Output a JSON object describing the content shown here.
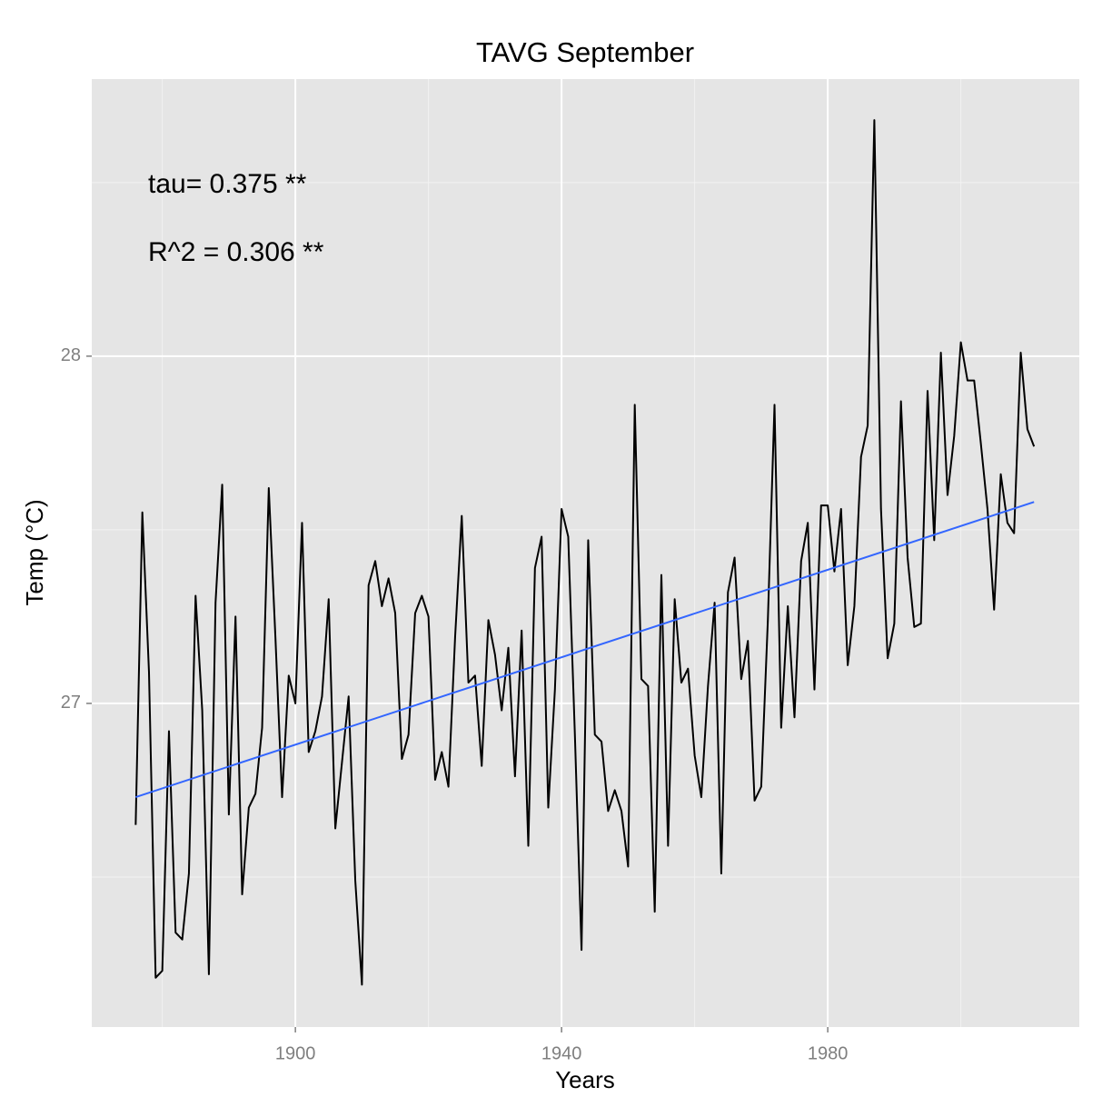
{
  "chart_data": {
    "type": "line",
    "title": "TAVG September",
    "x_label": "Years",
    "y_label": "Temp (°C)",
    "annotations": [
      "tau= 0.375 **",
      "R^2 =  0.306 **"
    ],
    "x": [
      1876,
      1877,
      1878,
      1879,
      1880,
      1881,
      1882,
      1883,
      1884,
      1885,
      1886,
      1887,
      1888,
      1889,
      1890,
      1891,
      1892,
      1893,
      1894,
      1895,
      1896,
      1897,
      1898,
      1899,
      1900,
      1901,
      1902,
      1903,
      1904,
      1905,
      1906,
      1907,
      1908,
      1909,
      1910,
      1911,
      1912,
      1913,
      1914,
      1915,
      1916,
      1917,
      1918,
      1919,
      1920,
      1921,
      1922,
      1923,
      1924,
      1925,
      1926,
      1927,
      1928,
      1929,
      1930,
      1931,
      1932,
      1933,
      1934,
      1935,
      1936,
      1937,
      1938,
      1939,
      1940,
      1941,
      1942,
      1943,
      1944,
      1945,
      1946,
      1947,
      1948,
      1949,
      1950,
      1951,
      1952,
      1953,
      1954,
      1955,
      1956,
      1957,
      1958,
      1959,
      1960,
      1961,
      1962,
      1963,
      1964,
      1965,
      1966,
      1967,
      1968,
      1969,
      1970,
      1971,
      1972,
      1973,
      1974,
      1975,
      1976,
      1977,
      1978,
      1979,
      1980,
      1981,
      1982,
      1983,
      1984,
      1985,
      1986,
      1987,
      1988,
      1989,
      1990,
      1991,
      1992,
      1993,
      1994,
      1995,
      1996,
      1997,
      1998,
      1999,
      2000,
      2001,
      2002,
      2003,
      2004,
      2005,
      2006,
      2007,
      2008,
      2009,
      2010,
      2011
    ],
    "series": [
      {
        "color": "#000000",
        "values": [
          26.65,
          27.55,
          27.09,
          26.21,
          26.23,
          26.92,
          26.34,
          26.32,
          26.51,
          27.31,
          26.98,
          26.22,
          27.29,
          27.63,
          26.68,
          27.25,
          26.45,
          26.7,
          26.74,
          26.93,
          27.62,
          27.19,
          26.73,
          27.08,
          27.0,
          27.52,
          26.86,
          26.92,
          27.02,
          27.3,
          26.64,
          26.83,
          27.02,
          26.49,
          26.19,
          27.34,
          27.41,
          27.28,
          27.36,
          27.26,
          26.84,
          26.91,
          27.26,
          27.31,
          27.25,
          26.78,
          26.86,
          26.76,
          27.19,
          27.54,
          27.06,
          27.08,
          26.82,
          27.24,
          27.14,
          26.98,
          27.16,
          26.79,
          27.21,
          26.59,
          27.39,
          27.48,
          26.7,
          27.04,
          27.56,
          27.48,
          26.91,
          26.29,
          27.47,
          26.91,
          26.89,
          26.69,
          26.75,
          26.69,
          26.53,
          27.86,
          27.07,
          27.05,
          26.4,
          27.37,
          26.59,
          27.3,
          27.06,
          27.1,
          26.85,
          26.73,
          27.05,
          27.29,
          26.51,
          27.32,
          27.42,
          27.07,
          27.18,
          26.72,
          26.76,
          27.24,
          27.86,
          26.93,
          27.28,
          26.96,
          27.41,
          27.52,
          27.04,
          27.57,
          27.57,
          27.38,
          27.56,
          27.11,
          27.28,
          27.71,
          27.8,
          28.68,
          27.56,
          27.13,
          27.23,
          27.87,
          27.42,
          27.22,
          27.23,
          27.9,
          27.47,
          28.01,
          27.6,
          27.77,
          28.04,
          27.93,
          27.93,
          27.75,
          27.56,
          27.27,
          27.66,
          27.52,
          27.49,
          28.01,
          27.79,
          27.74
        ]
      }
    ],
    "trend_line": {
      "x": [
        1876,
        2011
      ],
      "values": [
        26.73,
        27.58
      ],
      "color": "#3366ff"
    },
    "xlim": [
      1869.4,
      2017.8
    ],
    "xticks": [
      1900,
      1940,
      1980
    ],
    "ylim": [
      26.068,
      28.798
    ],
    "yticks": [
      27,
      28
    ],
    "grid": true
  }
}
